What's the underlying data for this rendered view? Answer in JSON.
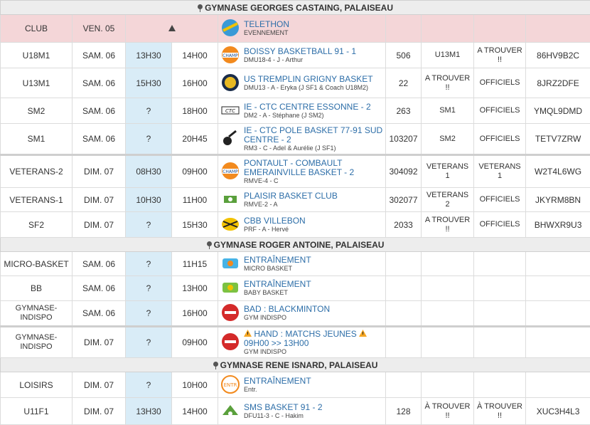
{
  "gyms": [
    {
      "name": "GYMNASE GEORGES CASTAING, PALAISEAU"
    },
    {
      "name": "GYMNASE ROGER ANTOINE, PALAISEAU"
    },
    {
      "name": "GYMNASE RENE ISNARD, PALAISEAU"
    }
  ],
  "header": {
    "club": "CLUB",
    "date": "VEN. 05",
    "game": "TELETHON",
    "sub": "EVENNEMENT"
  },
  "rows": [
    {
      "club": "U18M1",
      "date": "SAM. 06",
      "t1": "13H30",
      "t2": "14H00",
      "game": "BOISSY BASKETBALL 91 - 1",
      "sub": "DMU18-4 - J - Arthur",
      "num": "506",
      "a": "U13M1",
      "b": "A TROUVER !!",
      "code": "86HV9B2C"
    },
    {
      "club": "U13M1",
      "date": "SAM. 06",
      "t1": "15H30",
      "t2": "16H00",
      "game": "US TREMPLIN GRIGNY BASKET",
      "sub": "DMU13 - A - Eryka (J SF1 & Coach U18M2)",
      "num": "22",
      "a": "A TROUVER !!",
      "b": "OFFICIELS",
      "code": "8JRZ2DFE"
    },
    {
      "club": "SM2",
      "date": "SAM. 06",
      "t1": "?",
      "t2": "18H00",
      "game": "IE - CTC CENTRE ESSONNE - 2",
      "sub": "DM2 - A - Stéphane (J SM2)",
      "num": "263",
      "a": "SM1",
      "b": "OFFICIELS",
      "code": "YMQL9DMD"
    },
    {
      "club": "SM1",
      "date": "SAM. 06",
      "t1": "?",
      "t2": "20H45",
      "game": "IE - CTC POLE BASKET 77-91 SUD CENTRE - 2",
      "sub": "RM3 - C - Adel & Aurélie (J SF1)",
      "num": "103207",
      "a": "SM2",
      "b": "OFFICIELS",
      "code": "TETV7ZRW"
    },
    {
      "club": "VETERANS-2",
      "date": "DIM. 07",
      "t1": "08H30",
      "t2": "09H00",
      "game": "PONTAULT - COMBAULT EMERAINVILLE BASKET - 2",
      "sub": "RMVE-4 - C",
      "num": "304092",
      "a": "VETERANS 1",
      "b": "VETERANS 1",
      "code": "W2T4L6WG"
    },
    {
      "club": "VETERANS-1",
      "date": "DIM. 07",
      "t1": "10H30",
      "t2": "11H00",
      "game": "PLAISIR BASKET CLUB",
      "sub": "RMVE-2 - A",
      "num": "302077",
      "a": "VETERANS 2",
      "b": "OFFICIELS",
      "code": "JKYRM8BN"
    },
    {
      "club": "SF2",
      "date": "DIM. 07",
      "t1": "?",
      "t2": "15H30",
      "game": "CBB VILLEBON",
      "sub": "PRF - A - Hervé",
      "num": "2033",
      "a": "A TROUVER !!",
      "b": "OFFICIELS",
      "code": "BHWXR9U3"
    },
    {
      "club": "MICRO-BASKET",
      "date": "SAM. 06",
      "t1": "?",
      "t2": "11H15",
      "game": "ENTRAÎNEMENT",
      "sub": "MICRO BASKET",
      "num": "",
      "a": "",
      "b": "",
      "code": ""
    },
    {
      "club": "BB",
      "date": "SAM. 06",
      "t1": "?",
      "t2": "13H00",
      "game": "ENTRAÎNEMENT",
      "sub": "BABY BASKET",
      "num": "",
      "a": "",
      "b": "",
      "code": ""
    },
    {
      "club": "GYMNASE-INDISPO",
      "date": "SAM. 06",
      "t1": "?",
      "t2": "16H00",
      "game": "BAD : BLACKMINTON",
      "sub": "GYM INDISPO",
      "num": "",
      "a": "",
      "b": "",
      "code": ""
    },
    {
      "club": "GYMNASE-INDISPO",
      "date": "DIM. 07",
      "t1": "?",
      "t2": "09H00",
      "game": "HAND : MATCHS JEUNES",
      "game2": "09H00 >> 13H00",
      "sub": "GYM INDISPO",
      "num": "",
      "a": "",
      "b": "",
      "code": ""
    },
    {
      "club": "LOISIRS",
      "date": "DIM. 07",
      "t1": "?",
      "t2": "10H00",
      "game": "ENTRAÎNEMENT",
      "sub": "Entr.",
      "num": "",
      "a": "",
      "b": "",
      "code": ""
    },
    {
      "club": "U11F1",
      "date": "DIM. 07",
      "t1": "13H30",
      "t2": "14H00",
      "game": "SMS BASKET 91 - 2",
      "sub": "DFU11-3 - C - Hakim",
      "num": "128",
      "a": "À TROUVER !!",
      "b": "À TROUVER !!",
      "code": "XUC3H4L3"
    }
  ]
}
